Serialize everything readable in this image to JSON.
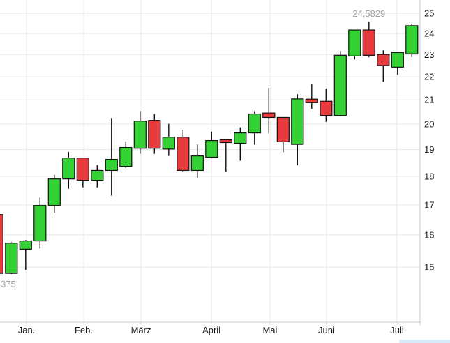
{
  "chart_data": {
    "type": "candlestick",
    "title": "",
    "scale": "log",
    "interval": "weekly",
    "y_ticks": [
      25,
      24,
      23,
      22,
      21,
      20,
      19,
      18,
      17,
      16,
      15
    ],
    "ylim": [
      13.9,
      25.3
    ],
    "grid": true,
    "x_axis_months": [
      {
        "label": "Jan.",
        "week_index": 2.06
      },
      {
        "label": "Feb.",
        "week_index": 6.06
      },
      {
        "label": "März",
        "week_index": 10.06
      },
      {
        "label": "April",
        "week_index": 14.99
      },
      {
        "label": "Mai",
        "week_index": 19.08
      },
      {
        "label": "Juni",
        "week_index": 23.03
      },
      {
        "label": "Juli",
        "week_index": 27.96
      }
    ],
    "candles": [
      {
        "o": 16.67,
        "h": 16.67,
        "l": 14.71,
        "c": 14.81
      },
      {
        "o": 14.81,
        "h": 15.77,
        "l": 14.79,
        "c": 15.74
      },
      {
        "o": 15.55,
        "h": 15.84,
        "l": 14.91,
        "c": 15.81
      },
      {
        "o": 15.81,
        "h": 17.25,
        "l": 15.57,
        "c": 16.98
      },
      {
        "o": 16.98,
        "h": 18.06,
        "l": 16.72,
        "c": 17.91
      },
      {
        "o": 17.91,
        "h": 18.91,
        "l": 17.56,
        "c": 18.68
      },
      {
        "o": 18.68,
        "h": 18.68,
        "l": 17.61,
        "c": 17.86
      },
      {
        "o": 17.86,
        "h": 18.42,
        "l": 17.61,
        "c": 18.22
      },
      {
        "o": 18.22,
        "h": 20.25,
        "l": 17.32,
        "c": 18.63
      },
      {
        "o": 18.37,
        "h": 19.32,
        "l": 18.32,
        "c": 19.08
      },
      {
        "o": 19.05,
        "h": 20.53,
        "l": 18.84,
        "c": 20.12
      },
      {
        "o": 20.15,
        "h": 20.41,
        "l": 18.84,
        "c": 19.05
      },
      {
        "o": 19.02,
        "h": 20.01,
        "l": 18.76,
        "c": 19.48
      },
      {
        "o": 19.48,
        "h": 19.78,
        "l": 18.17,
        "c": 18.22
      },
      {
        "o": 18.22,
        "h": 19.19,
        "l": 17.94,
        "c": 18.76
      },
      {
        "o": 18.71,
        "h": 19.7,
        "l": 18.68,
        "c": 19.35
      },
      {
        "o": 19.38,
        "h": 19.38,
        "l": 18.17,
        "c": 19.27
      },
      {
        "o": 19.24,
        "h": 19.87,
        "l": 18.58,
        "c": 19.65
      },
      {
        "o": 19.65,
        "h": 20.53,
        "l": 19.19,
        "c": 20.41
      },
      {
        "o": 20.45,
        "h": 21.51,
        "l": 19.62,
        "c": 20.27
      },
      {
        "o": 20.27,
        "h": 20.27,
        "l": 18.9,
        "c": 19.3
      },
      {
        "o": 19.2,
        "h": 21.24,
        "l": 18.41,
        "c": 21.04
      },
      {
        "o": 21.03,
        "h": 21.69,
        "l": 20.62,
        "c": 20.88
      },
      {
        "o": 20.94,
        "h": 21.48,
        "l": 20.09,
        "c": 20.35
      },
      {
        "o": 20.35,
        "h": 23.17,
        "l": 20.32,
        "c": 22.97
      },
      {
        "o": 22.94,
        "h": 24.17,
        "l": 22.78,
        "c": 24.17
      },
      {
        "o": 24.17,
        "h": 24.5829,
        "l": 22.88,
        "c": 22.97
      },
      {
        "o": 23.01,
        "h": 23.2,
        "l": 21.78,
        "c": 22.5
      },
      {
        "o": 22.43,
        "h": 23.1,
        "l": 22.09,
        "c": 23.1
      },
      {
        "o": 23.04,
        "h": 24.48,
        "l": 22.88,
        "c": 24.38
      }
    ],
    "annotations": {
      "high_label": {
        "text": "24,5829",
        "candle_index": 26
      },
      "low_label_fragment": {
        "text": "375",
        "candle_index": 0
      }
    },
    "legend": "none",
    "colors": {
      "up": "#33d133",
      "down": "#e83b3d",
      "candle_border": "#111111",
      "wick": "#111111",
      "grid": "#e7e7e7",
      "axis_line": "#c8c8c8",
      "axis_text": "#1a1a1a",
      "annotation_text": "#a0a0a0"
    }
  },
  "ui": {
    "partial_bottom_element_color": "#d7e9f8"
  }
}
